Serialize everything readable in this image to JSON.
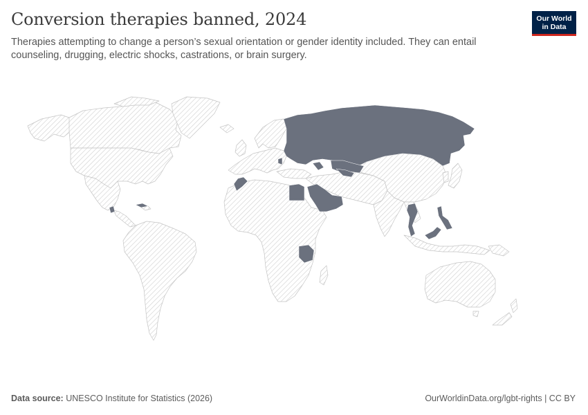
{
  "header": {
    "title": "Conversion therapies banned, 2024",
    "subtitle": "Therapies attempting to change a person’s sexual orientation or gender identity included. They can entail counseling, drugging, electric shocks, castrations, or brain surgery."
  },
  "logo": {
    "line1": "Our World",
    "line2": "in Data"
  },
  "footer": {
    "source_label": "Data source:",
    "source_text": "UNESCO Institute for Statistics (2026)",
    "url_text": "OurWorldinData.org/lgbt-rights",
    "separator": " | ",
    "license_text": "CC BY"
  },
  "map": {
    "colors": {
      "banned": "#6b717e",
      "no_data_stroke": "#cfcfcf",
      "border": "#bdbdbd",
      "land": "#ffffff"
    },
    "banned_regions": [
      "Russia",
      "Kazakhstan",
      "Georgia",
      "Azerbaijan",
      "Turkmenistan",
      "Uzbekistan",
      "Moldova",
      "Morocco",
      "Egypt",
      "Saudi Arabia",
      "Yemen",
      "Oman",
      "Tanzania",
      "Cuba",
      "Guatemala",
      "Thailand",
      "Cambodia",
      "Malaysia",
      "Philippines",
      "Brunei"
    ]
  }
}
